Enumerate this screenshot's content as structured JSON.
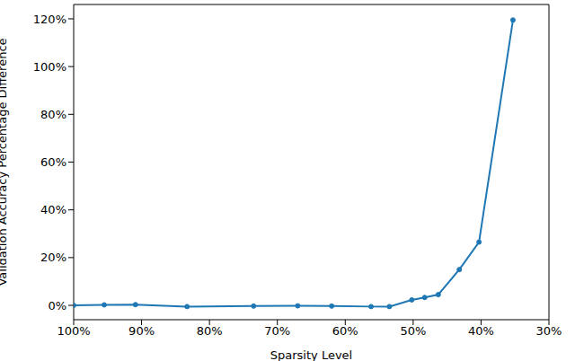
{
  "chart_data": {
    "type": "line",
    "x_label": "Sparsity Level",
    "y_label": "Validation Accuracy Percentage Difference",
    "x": [
      100,
      95.5,
      90.9,
      83.3,
      73.5,
      67,
      62,
      56.2,
      53.5,
      50.2,
      48.3,
      46.3,
      43.2,
      40.3,
      35.3
    ],
    "values": [
      0,
      0.2,
      0.3,
      -0.5,
      -0.3,
      -0.2,
      -0.3,
      -0.5,
      -0.5,
      2.3,
      3.3,
      4.5,
      15,
      26.5,
      119.5
    ],
    "color": "#1f77b4",
    "marker": "o",
    "line_style": "solid",
    "xlim": [
      100,
      30
    ],
    "ylim": [
      -6,
      126
    ],
    "xticks": [
      {
        "value": 100,
        "label": "100%"
      },
      {
        "value": 90,
        "label": "90%"
      },
      {
        "value": 80,
        "label": "80%"
      },
      {
        "value": 70,
        "label": "70%"
      },
      {
        "value": 60,
        "label": "60%"
      },
      {
        "value": 50,
        "label": "50%"
      },
      {
        "value": 40,
        "label": "40%"
      },
      {
        "value": 30,
        "label": "30%"
      }
    ],
    "yticks": [
      {
        "value": 0,
        "label": "0%"
      },
      {
        "value": 20,
        "label": "20%"
      },
      {
        "value": 40,
        "label": "40%"
      },
      {
        "value": 60,
        "label": "60%"
      },
      {
        "value": 80,
        "label": "80%"
      },
      {
        "value": 100,
        "label": "100%"
      },
      {
        "value": 120,
        "label": "120%"
      }
    ],
    "grid": false
  }
}
